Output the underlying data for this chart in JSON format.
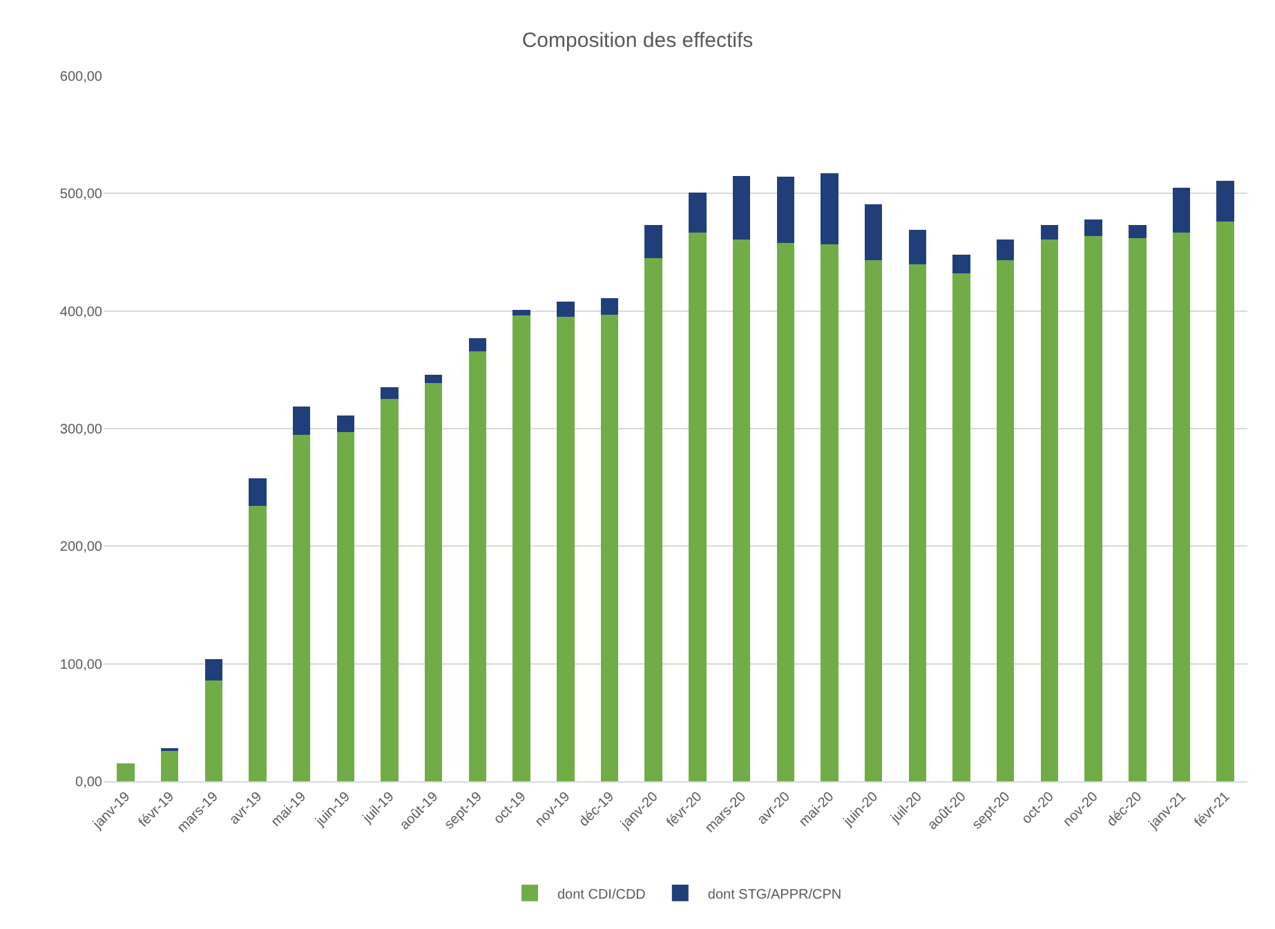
{
  "chart_data": {
    "type": "bar",
    "title": "Composition des effectifs",
    "categories": [
      "janv-19",
      "févr-19",
      "mars-19",
      "avr-19",
      "mai-19",
      "juin-19",
      "juil-19",
      "août-19",
      "sept-19",
      "oct-19",
      "nov-19",
      "déc-19",
      "janv-20",
      "févr-20",
      "mars-20",
      "avr-20",
      "mai-20",
      "juin-20",
      "juil-20",
      "août-20",
      "sept-20",
      "oct-20",
      "nov-20",
      "déc-20",
      "janv-21",
      "févr-21"
    ],
    "stacked": true,
    "series": [
      {
        "name": "dont CDI/CDD",
        "color": "#70ad47",
        "values": [
          15,
          27,
          86,
          234,
          295,
          297,
          325,
          339,
          366,
          396,
          395,
          397,
          445,
          467,
          461,
          458,
          457,
          443,
          440,
          432,
          443,
          461,
          464,
          462,
          467,
          476
        ]
      },
      {
        "name": "dont STG/APPR/CPN",
        "color": "#203f7a",
        "values": [
          0,
          1,
          18,
          24,
          24,
          14,
          10,
          7,
          11,
          5,
          13,
          14,
          28,
          34,
          54,
          56,
          60,
          48,
          29,
          16,
          18,
          12,
          14,
          11,
          38,
          35
        ]
      }
    ],
    "ylim": [
      0,
      600
    ],
    "yticks": [
      {
        "value": 0,
        "label": "0,00"
      },
      {
        "value": 100,
        "label": "100,00"
      },
      {
        "value": 200,
        "label": "200,00"
      },
      {
        "value": 300,
        "label": "300,00"
      },
      {
        "value": 400,
        "label": "400,00"
      },
      {
        "value": 500,
        "label": "500,00"
      },
      {
        "value": 600,
        "label": "600,00"
      }
    ],
    "grid": "y",
    "legend": "bottom"
  }
}
